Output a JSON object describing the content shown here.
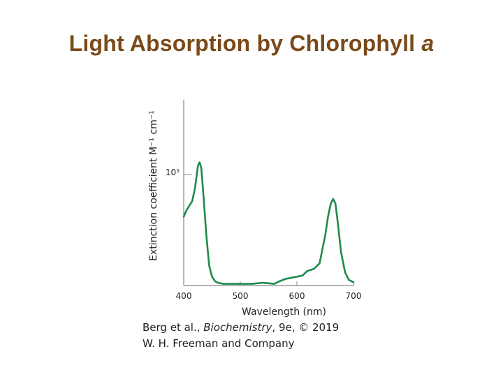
{
  "slide": {
    "title_main": "Light Absorption by Chlorophyll",
    "title_italic": "a"
  },
  "credit": {
    "line1_prefix": "Berg et al., ",
    "line1_book": "Biochemistry",
    "line1_suffix": ", 9e, © 2019",
    "line2": "W. H. Freeman and Company"
  },
  "colors": {
    "title": "#7a4a1a",
    "curve": "#1f8a4c",
    "axis": "#888888"
  },
  "chart_data": {
    "type": "line",
    "xlabel": "Wavelength (nm)",
    "ylabel": "Extinction coefficient M⁻¹ cm⁻¹",
    "xlim": [
      400,
      700
    ],
    "ylim": [
      0,
      200000
    ],
    "x_ticks": [
      400,
      500,
      600,
      700
    ],
    "y_ticks": [
      {
        "value": 100000,
        "label": "10⁵"
      }
    ],
    "grid": false,
    "series": [
      {
        "points": [
          [
            400,
            62000
          ],
          [
            405,
            68000
          ],
          [
            410,
            72000
          ],
          [
            415,
            76000
          ],
          [
            420,
            88000
          ],
          [
            425,
            108000
          ],
          [
            428,
            111000
          ],
          [
            431,
            106000
          ],
          [
            435,
            80000
          ],
          [
            440,
            45000
          ],
          [
            445,
            18000
          ],
          [
            450,
            8000
          ],
          [
            455,
            4000
          ],
          [
            460,
            2500
          ],
          [
            470,
            1500
          ],
          [
            500,
            1500
          ],
          [
            520,
            1500
          ],
          [
            540,
            2500
          ],
          [
            550,
            2000
          ],
          [
            560,
            1500
          ],
          [
            570,
            4000
          ],
          [
            580,
            6000
          ],
          [
            590,
            7000
          ],
          [
            600,
            8000
          ],
          [
            610,
            9000
          ],
          [
            618,
            13000
          ],
          [
            630,
            15000
          ],
          [
            640,
            20000
          ],
          [
            650,
            45000
          ],
          [
            655,
            62000
          ],
          [
            660,
            74000
          ],
          [
            664,
            78000
          ],
          [
            668,
            74000
          ],
          [
            672,
            58000
          ],
          [
            678,
            30000
          ],
          [
            685,
            12000
          ],
          [
            692,
            5000
          ],
          [
            700,
            3000
          ]
        ]
      }
    ]
  }
}
